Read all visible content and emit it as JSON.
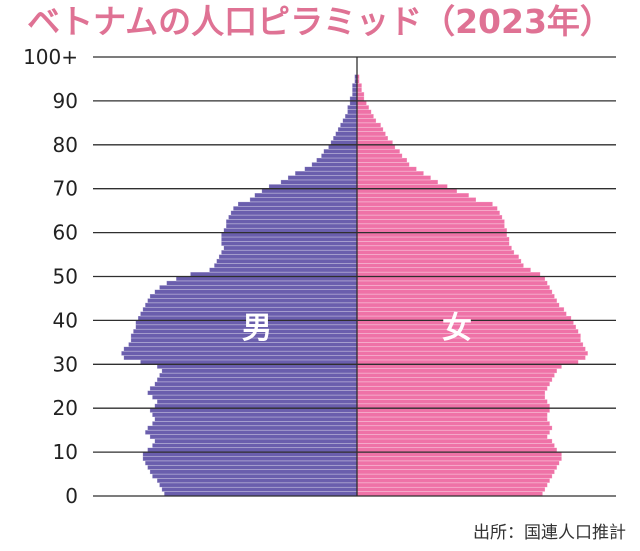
{
  "chart_data": {
    "type": "population-pyramid",
    "title": "ベトナムの人口ピラミッド（2023年）",
    "source": "出所：国連人口推計",
    "ages": [
      0,
      1,
      2,
      3,
      4,
      5,
      6,
      7,
      8,
      9,
      10,
      11,
      12,
      13,
      14,
      15,
      16,
      17,
      18,
      19,
      20,
      21,
      22,
      23,
      24,
      25,
      26,
      27,
      28,
      29,
      30,
      31,
      32,
      33,
      34,
      35,
      36,
      37,
      38,
      39,
      40,
      41,
      42,
      43,
      44,
      45,
      46,
      47,
      48,
      49,
      50,
      51,
      52,
      53,
      54,
      55,
      56,
      57,
      58,
      59,
      60,
      61,
      62,
      63,
      64,
      65,
      66,
      67,
      68,
      69,
      70,
      71,
      72,
      73,
      74,
      75,
      76,
      77,
      78,
      79,
      80,
      81,
      82,
      83,
      84,
      85,
      86,
      87,
      88,
      89,
      90,
      91,
      92,
      93,
      94,
      95
    ],
    "y_ticks": [
      0,
      10,
      20,
      30,
      40,
      50,
      60,
      70,
      80,
      90,
      100
    ],
    "y_tick_labels": [
      "0",
      "10",
      "20",
      "30",
      "40",
      "50",
      "60",
      "70",
      "80",
      "90",
      "100+"
    ],
    "ylim": [
      0,
      100
    ],
    "xlim": [
      -1,
      1
    ],
    "series": [
      {
        "name": "男",
        "color": "#6a5ead",
        "values": [
          0.81,
          0.82,
          0.83,
          0.84,
          0.86,
          0.87,
          0.88,
          0.89,
          0.9,
          0.9,
          0.88,
          0.86,
          0.85,
          0.87,
          0.89,
          0.88,
          0.86,
          0.85,
          0.86,
          0.87,
          0.85,
          0.84,
          0.86,
          0.88,
          0.87,
          0.85,
          0.84,
          0.83,
          0.82,
          0.84,
          0.91,
          0.98,
          0.99,
          0.98,
          0.96,
          0.95,
          0.95,
          0.94,
          0.93,
          0.93,
          0.92,
          0.91,
          0.9,
          0.89,
          0.88,
          0.87,
          0.85,
          0.83,
          0.8,
          0.76,
          0.7,
          0.62,
          0.6,
          0.59,
          0.58,
          0.57,
          0.56,
          0.57,
          0.57,
          0.57,
          0.56,
          0.55,
          0.55,
          0.54,
          0.53,
          0.52,
          0.5,
          0.45,
          0.43,
          0.4,
          0.37,
          0.32,
          0.29,
          0.26,
          0.22,
          0.19,
          0.17,
          0.15,
          0.14,
          0.12,
          0.11,
          0.1,
          0.09,
          0.08,
          0.07,
          0.06,
          0.05,
          0.04,
          0.04,
          0.03,
          0.03,
          0.02,
          0.02,
          0.02,
          0.01,
          0.01
        ]
      },
      {
        "name": "女",
        "color": "#ef72a7",
        "values": [
          0.78,
          0.79,
          0.8,
          0.81,
          0.82,
          0.83,
          0.84,
          0.85,
          0.86,
          0.86,
          0.84,
          0.83,
          0.82,
          0.8,
          0.81,
          0.82,
          0.81,
          0.8,
          0.8,
          0.81,
          0.81,
          0.8,
          0.79,
          0.79,
          0.8,
          0.81,
          0.82,
          0.83,
          0.84,
          0.86,
          0.93,
          0.96,
          0.97,
          0.96,
          0.95,
          0.94,
          0.94,
          0.93,
          0.92,
          0.91,
          0.9,
          0.88,
          0.87,
          0.85,
          0.84,
          0.83,
          0.82,
          0.81,
          0.8,
          0.79,
          0.77,
          0.73,
          0.7,
          0.69,
          0.68,
          0.66,
          0.65,
          0.64,
          0.64,
          0.63,
          0.63,
          0.62,
          0.62,
          0.61,
          0.6,
          0.59,
          0.57,
          0.5,
          0.47,
          0.42,
          0.38,
          0.34,
          0.31,
          0.28,
          0.25,
          0.22,
          0.21,
          0.19,
          0.18,
          0.16,
          0.15,
          0.13,
          0.12,
          0.11,
          0.1,
          0.08,
          0.07,
          0.06,
          0.05,
          0.04,
          0.03,
          0.03,
          0.02,
          0.02,
          0.01,
          0.01
        ]
      }
    ]
  }
}
